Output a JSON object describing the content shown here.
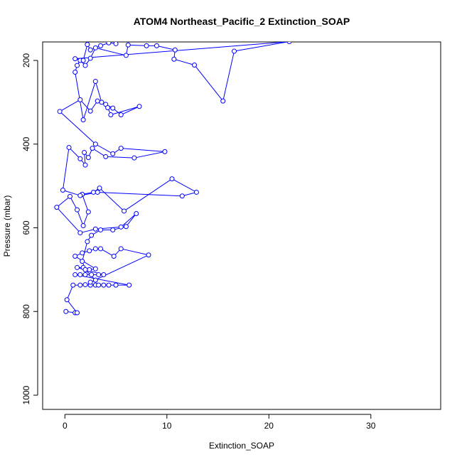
{
  "chart_data": {
    "type": "line",
    "title": "ATOM4 Northeast_Pacific_2 Extinction_SOAP",
    "xlabel": "Extinction_SOAP",
    "ylabel": "Pressure (mbar)",
    "xlim": [
      -2,
      36
    ],
    "ylim": [
      1035,
      155
    ],
    "y_reversed": true,
    "x_ticks": [
      0,
      10,
      20,
      30
    ],
    "y_ticks": [
      200,
      400,
      600,
      800,
      1000
    ],
    "grid": false,
    "legend": "none",
    "series_color": "#0000ff",
    "points": [
      [
        0.1,
        800
      ],
      [
        1.0,
        803
      ],
      [
        1.2,
        803
      ],
      [
        0.2,
        772
      ],
      [
        0.8,
        737
      ],
      [
        1.5,
        737
      ],
      [
        2.0,
        736
      ],
      [
        2.5,
        737
      ],
      [
        3.0,
        737
      ],
      [
        3.3,
        737
      ],
      [
        3.8,
        737
      ],
      [
        4.3,
        737
      ],
      [
        5.0,
        737
      ],
      [
        6.3,
        737
      ],
      [
        1.0,
        712
      ],
      [
        1.5,
        712
      ],
      [
        2.0,
        712
      ],
      [
        2.6,
        712
      ],
      [
        3.3,
        712
      ],
      [
        3.8,
        712
      ],
      [
        1.2,
        695
      ],
      [
        1.8,
        695
      ],
      [
        2.4,
        700
      ],
      [
        3.0,
        698
      ],
      [
        1.0,
        668
      ],
      [
        1.7,
        660
      ],
      [
        2.4,
        655
      ],
      [
        3.0,
        650
      ],
      [
        3.5,
        650
      ],
      [
        4.8,
        668
      ],
      [
        5.5,
        650
      ],
      [
        8.2,
        665
      ],
      [
        2.5,
        730
      ],
      [
        3.0,
        725
      ],
      [
        2.0,
        700
      ],
      [
        1.7,
        680
      ],
      [
        2.2,
        633
      ],
      [
        2.6,
        618
      ],
      [
        3.5,
        605
      ],
      [
        4.7,
        605
      ],
      [
        6.0,
        597
      ],
      [
        7.0,
        566
      ],
      [
        5.5,
        598
      ],
      [
        3.0,
        603
      ],
      [
        1.5,
        612
      ],
      [
        -0.8,
        551
      ],
      [
        0.5,
        525
      ],
      [
        1.2,
        557
      ],
      [
        1.8,
        595
      ],
      [
        2.3,
        562
      ],
      [
        1.7,
        520
      ],
      [
        2.8,
        515
      ],
      [
        3.4,
        505
      ],
      [
        5.8,
        560
      ],
      [
        10.5,
        483
      ],
      [
        12.9,
        515
      ],
      [
        11.5,
        524
      ],
      [
        3.2,
        515
      ],
      [
        1.5,
        523
      ],
      [
        -0.2,
        510
      ],
      [
        0.4,
        408
      ],
      [
        1.5,
        435
      ],
      [
        2.0,
        450
      ],
      [
        1.9,
        420
      ],
      [
        2.3,
        432
      ],
      [
        2.7,
        410
      ],
      [
        4.0,
        430
      ],
      [
        6.8,
        433
      ],
      [
        9.8,
        418
      ],
      [
        5.5,
        410
      ],
      [
        4.7,
        423
      ],
      [
        3.0,
        400
      ],
      [
        -0.5,
        322
      ],
      [
        1.5,
        294
      ],
      [
        2.5,
        321
      ],
      [
        3.2,
        297
      ],
      [
        4.0,
        305
      ],
      [
        4.7,
        314
      ],
      [
        5.5,
        330
      ],
      [
        7.3,
        310
      ],
      [
        4.5,
        330
      ],
      [
        4.2,
        313
      ],
      [
        3.6,
        300
      ],
      [
        3.0,
        250
      ],
      [
        1.8,
        342
      ],
      [
        1.0,
        228
      ],
      [
        1.2,
        212
      ],
      [
        1.5,
        200
      ],
      [
        2.0,
        212
      ],
      [
        2.5,
        195
      ],
      [
        3.0,
        170
      ],
      [
        6.0,
        188
      ],
      [
        6.2,
        163
      ],
      [
        8.0,
        165
      ],
      [
        9.0,
        165
      ],
      [
        10.8,
        175
      ],
      [
        10.7,
        197
      ],
      [
        12.7,
        211
      ],
      [
        15.5,
        297
      ],
      [
        16.6,
        178
      ],
      [
        22.0,
        155
      ],
      [
        1.0,
        196
      ],
      [
        1.8,
        200
      ],
      [
        2.2,
        162
      ],
      [
        2.5,
        175
      ],
      [
        3.5,
        165
      ],
      [
        4.3,
        158
      ],
      [
        5.0,
        160
      ]
    ]
  }
}
